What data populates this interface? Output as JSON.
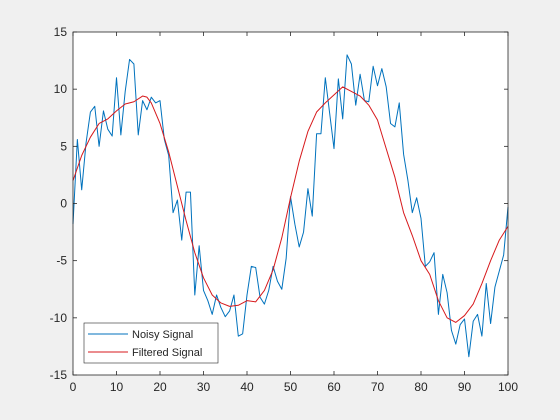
{
  "chart_data": {
    "type": "line",
    "xlim": [
      0,
      100
    ],
    "ylim": [
      -15,
      15
    ],
    "x_ticks": [
      "0",
      "10",
      "20",
      "30",
      "40",
      "50",
      "60",
      "70",
      "80",
      "90",
      "100"
    ],
    "y_ticks": [
      "15",
      "10",
      "5",
      "0",
      "-5",
      "-10",
      "-15"
    ],
    "grid": false,
    "legend_position": "bottom-left",
    "series": [
      {
        "name": "Noisy Signal",
        "color": "#0072bd",
        "x": [
          0,
          1,
          2,
          3,
          4,
          5,
          6,
          7,
          8,
          9,
          10,
          11,
          12,
          13,
          14,
          15,
          16,
          17,
          18,
          19,
          20,
          21,
          22,
          23,
          24,
          25,
          26,
          27,
          28,
          29,
          30,
          31,
          32,
          33,
          34,
          35,
          36,
          37,
          38,
          39,
          40,
          41,
          42,
          43,
          44,
          45,
          46,
          47,
          48,
          49,
          50,
          51,
          52,
          53,
          54,
          55,
          56,
          57,
          58,
          59,
          60,
          61,
          62,
          63,
          64,
          65,
          66,
          67,
          68,
          69,
          70,
          71,
          72,
          73,
          74,
          75,
          76,
          77,
          78,
          79,
          80,
          81,
          82,
          83,
          84,
          85,
          86,
          87,
          88,
          89,
          90,
          91,
          92,
          93,
          94,
          95,
          96,
          97,
          98,
          99,
          100
        ],
        "y": [
          -1.8,
          5.6,
          1.2,
          5.3,
          8.0,
          8.5,
          5.0,
          8.1,
          6.5,
          5.9,
          11.0,
          6.0,
          9.8,
          12.6,
          12.2,
          6.0,
          9.0,
          8.2,
          9.3,
          8.8,
          9.0,
          5.6,
          4.2,
          -0.8,
          0.3,
          -3.2,
          1.0,
          1.0,
          -8.0,
          -3.7,
          -7.6,
          -8.5,
          -9.7,
          -8.0,
          -9.1,
          -9.9,
          -9.4,
          -8.0,
          -11.6,
          -11.4,
          -8.0,
          -5.5,
          -5.6,
          -8.2,
          -8.8,
          -7.6,
          -5.5,
          -6.8,
          -7.5,
          -4.8,
          0.6,
          -1.8,
          -3.8,
          -2.5,
          1.3,
          -1.1,
          6.1,
          6.1,
          11.0,
          7.9,
          4.8,
          10.9,
          7.4,
          13.0,
          12.2,
          8.6,
          11.3,
          9.0,
          8.9,
          12.0,
          10.3,
          11.8,
          10.2,
          7.0,
          6.7,
          8.8,
          4.3,
          2.0,
          -0.8,
          0.5,
          -1.3,
          -5.5,
          -5.1,
          -4.3,
          -9.7,
          -6.2,
          -7.8,
          -11.1,
          -12.3,
          -10.6,
          -10.1,
          -13.4,
          -10.3,
          -9.7,
          -11.6,
          -7.0,
          -10.5,
          -7.3,
          -5.9,
          -4.5,
          -0.3
        ]
      },
      {
        "name": "Filtered Signal",
        "color": "#d7191c",
        "x": [
          0,
          2,
          4,
          6,
          8,
          10,
          12,
          14,
          16,
          17,
          18,
          20,
          22,
          24,
          26,
          28,
          30,
          32,
          34,
          36,
          38,
          40,
          42,
          44,
          46,
          48,
          50,
          52,
          54,
          56,
          58,
          60,
          62,
          64,
          66,
          68,
          70,
          72,
          74,
          76,
          78,
          80,
          82,
          84,
          86,
          88,
          90,
          92,
          94,
          96,
          98,
          100
        ],
        "y": [
          2.0,
          4.2,
          5.8,
          7.0,
          7.4,
          8.1,
          8.7,
          8.9,
          9.4,
          9.3,
          8.8,
          7.0,
          4.5,
          1.5,
          -1.5,
          -4.3,
          -6.5,
          -8.0,
          -8.7,
          -9.0,
          -8.9,
          -8.5,
          -8.6,
          -7.6,
          -5.8,
          -3.0,
          0.5,
          3.7,
          6.3,
          8.0,
          8.8,
          9.5,
          10.2,
          9.8,
          9.4,
          8.6,
          7.3,
          4.8,
          2.3,
          -0.8,
          -2.8,
          -5.0,
          -6.2,
          -8.5,
          -10.0,
          -10.4,
          -9.8,
          -8.8,
          -7.0,
          -5.0,
          -3.2,
          -2.0
        ]
      }
    ]
  }
}
